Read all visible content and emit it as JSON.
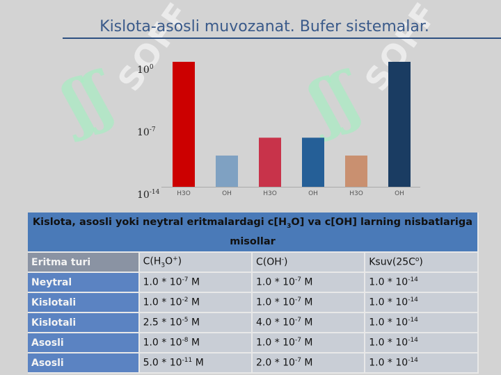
{
  "title": "Kislota-asosli muvozanat. Bufer sistemalar.",
  "watermark": "SOFF",
  "watermark_logo": "ʃʃ",
  "chart_data": {
    "type": "bar",
    "categories": [
      "H3O",
      "OH",
      "H3O",
      "OH",
      "H3O",
      "OH"
    ],
    "values": [
      0,
      -10.5,
      -8.5,
      -8.5,
      -10.5,
      0
    ],
    "colors": [
      "#cc0000",
      "#7fa1c2",
      "#c8334a",
      "#255f97",
      "#c99070",
      "#1a3c62"
    ],
    "ylim": [
      -14,
      0
    ],
    "yticks": [
      {
        "value": 0,
        "base": "10",
        "exp": "0"
      },
      {
        "value": -7,
        "base": "10",
        "exp": "-7"
      },
      {
        "value": -14,
        "base": "10",
        "exp": "-14"
      }
    ]
  },
  "table": {
    "heading_pre": "Kislota, asosli yoki neytral eritmalardagi c[H",
    "heading_sub": "3",
    "heading_post": "O] va c[OH] larning nisbatlariga misollar",
    "col0": "Eritma turi",
    "col1": {
      "a": "C(H",
      "sub": "3",
      "b": "O",
      "sup": "+",
      "c": ")"
    },
    "col2": {
      "a": "C(OH",
      "sup": "-",
      "c": ")"
    },
    "col3": {
      "a": "Ksuv(25C",
      "sup": "o",
      "c": ")"
    },
    "rows": [
      {
        "type": "Neytral",
        "c1": "1.0 * 10",
        "e1": "-7",
        "c2": "1.0 * 10",
        "e2": "-7",
        "c3": "1.0 * 10",
        "e3": "-14",
        "unit": " M"
      },
      {
        "type": "Kislotali",
        "c1": "1.0 * 10",
        "e1": "-2",
        "c2": "1.0 * 10",
        "e2": "-7",
        "c3": "1.0 * 10",
        "e3": "-14",
        "unit": " M"
      },
      {
        "type": "Kislotali",
        "c1": "2.5 * 10",
        "e1": "-5",
        "c2": "4.0 * 10",
        "e2": "-7",
        "c3": "1.0 * 10",
        "e3": "-14",
        "unit": " M"
      },
      {
        "type": "Asosli",
        "c1": "1.0 * 10",
        "e1": "-8",
        "c2": "1.0 * 10",
        "e2": "-7",
        "c3": "1.0 * 10",
        "e3": "-14",
        "unit": " M"
      },
      {
        "type": "Asosli",
        "c1": "5.0 * 10",
        "e1": "-11",
        "c2": "2.0 * 10",
        "e2": "-7",
        "c3": "1.0 * 10",
        "e3": "-14",
        "unit": " M"
      }
    ]
  }
}
